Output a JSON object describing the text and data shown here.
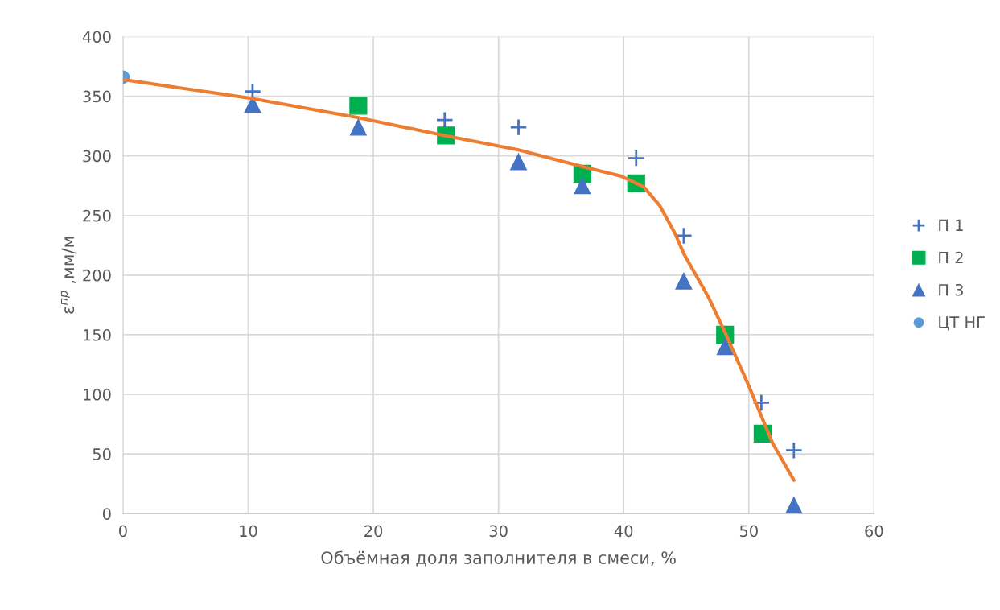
{
  "chart_data": {
    "type": "scatter",
    "xlabel": "Объёмная доля заполнителя в смеси, %",
    "ylabel": "ε$^{пр}$ ,мм/м",
    "xlim": [
      0,
      60
    ],
    "xticks": [
      0,
      10,
      20,
      30,
      40,
      50,
      60
    ],
    "ylim": [
      0,
      400
    ],
    "yticks": [
      0,
      50,
      100,
      150,
      200,
      250,
      300,
      350,
      400
    ],
    "grid": true,
    "legend": "right",
    "series": [
      {
        "name": "П 1",
        "marker": "cross",
        "color": "#4472c4",
        "x": [
          10.35,
          25.7,
          31.6,
          41.0,
          44.8,
          51.0,
          53.6
        ],
        "values": [
          354,
          330,
          324,
          298,
          233,
          93,
          53
        ]
      },
      {
        "name": "П 2",
        "marker": "square",
        "color": "#00b050",
        "x": [
          18.8,
          25.8,
          36.7,
          41.0,
          48.1,
          51.1
        ],
        "values": [
          342,
          317,
          285,
          277,
          150,
          67
        ]
      },
      {
        "name": "П 3",
        "marker": "triangle",
        "color": "#4472c4",
        "x": [
          10.35,
          18.8,
          31.6,
          36.7,
          44.8,
          48.1,
          53.6
        ],
        "values": [
          343,
          324,
          295,
          275,
          195,
          140,
          7
        ]
      },
      {
        "name": "ЦТ НГ",
        "marker": "circle",
        "color": "#5b9bd5",
        "x": [
          0
        ],
        "values": [
          366
        ]
      },
      {
        "type": "line",
        "marker": "none",
        "color": "#ed7d31",
        "x": [
          0,
          10.35,
          18.8,
          25.7,
          31.6,
          36.7,
          39.8,
          41.6,
          42.9,
          44.1,
          44.8,
          46.8,
          48.1,
          50.0,
          51.9,
          53.6
        ],
        "values": [
          364,
          348,
          332,
          317,
          305,
          291,
          283,
          274,
          258,
          235,
          218,
          181,
          152,
          107,
          59,
          28
        ]
      }
    ]
  }
}
